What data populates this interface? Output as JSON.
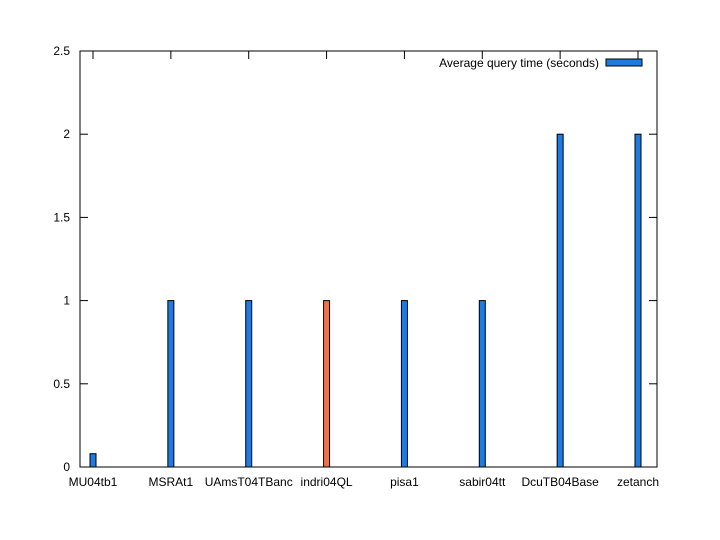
{
  "chart_data": {
    "type": "bar",
    "categories": [
      "MU04tb1",
      "MSRAt1",
      "UAmsT04TBanc",
      "indri04QL",
      "pisa1",
      "sabir04tt",
      "DcuTB04Base",
      "zetanch"
    ],
    "series": [
      {
        "name": "Average query time (seconds)",
        "values": [
          0.08,
          1,
          1,
          1,
          1,
          1,
          2,
          2
        ]
      }
    ],
    "highlight_index": 3,
    "ylim": [
      0,
      2.5
    ],
    "yticks": [
      "0",
      "0.5",
      "1",
      "1.5",
      "2",
      "2.5"
    ],
    "ytick_values": [
      0,
      0.5,
      1,
      1.5,
      2,
      2.5
    ],
    "xlabel": "",
    "ylabel": "",
    "title": "",
    "legend": "top-right",
    "grid": false,
    "colors": {
      "bar": "#1f7be0",
      "highlight": "#e8744a",
      "edge": "#000000"
    }
  }
}
